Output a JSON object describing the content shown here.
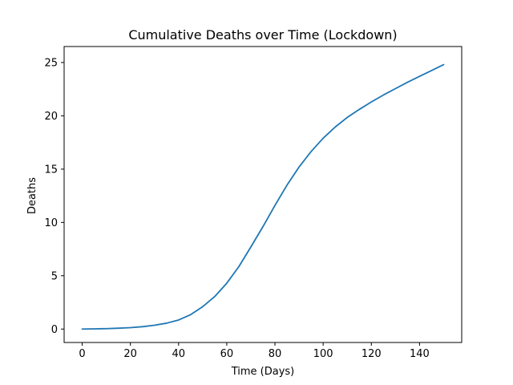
{
  "chart_data": {
    "type": "line",
    "title": "Cumulative Deaths over Time (Lockdown)",
    "xlabel": "Time (Days)",
    "ylabel": "Deaths",
    "xlim": [
      -7.5,
      157.5
    ],
    "ylim": [
      -1.26,
      26.5
    ],
    "xticks": [
      0,
      20,
      40,
      60,
      80,
      100,
      120,
      140
    ],
    "yticks": [
      0,
      5,
      10,
      15,
      20,
      25
    ],
    "grid": false,
    "legend": "none",
    "series": [
      {
        "color": "#1f77b4",
        "x": [
          0,
          5,
          10,
          15,
          20,
          25,
          30,
          35,
          40,
          45,
          50,
          55,
          60,
          65,
          70,
          75,
          80,
          85,
          90,
          95,
          100,
          105,
          110,
          115,
          120,
          125,
          130,
          135,
          140,
          145,
          150
        ],
        "y": [
          0.0,
          0.02,
          0.04,
          0.08,
          0.13,
          0.22,
          0.36,
          0.55,
          0.85,
          1.35,
          2.1,
          3.05,
          4.3,
          5.85,
          7.7,
          9.6,
          11.6,
          13.5,
          15.2,
          16.65,
          17.9,
          18.95,
          19.85,
          20.6,
          21.3,
          21.95,
          22.55,
          23.15,
          23.7,
          24.25,
          24.8
        ]
      }
    ]
  }
}
